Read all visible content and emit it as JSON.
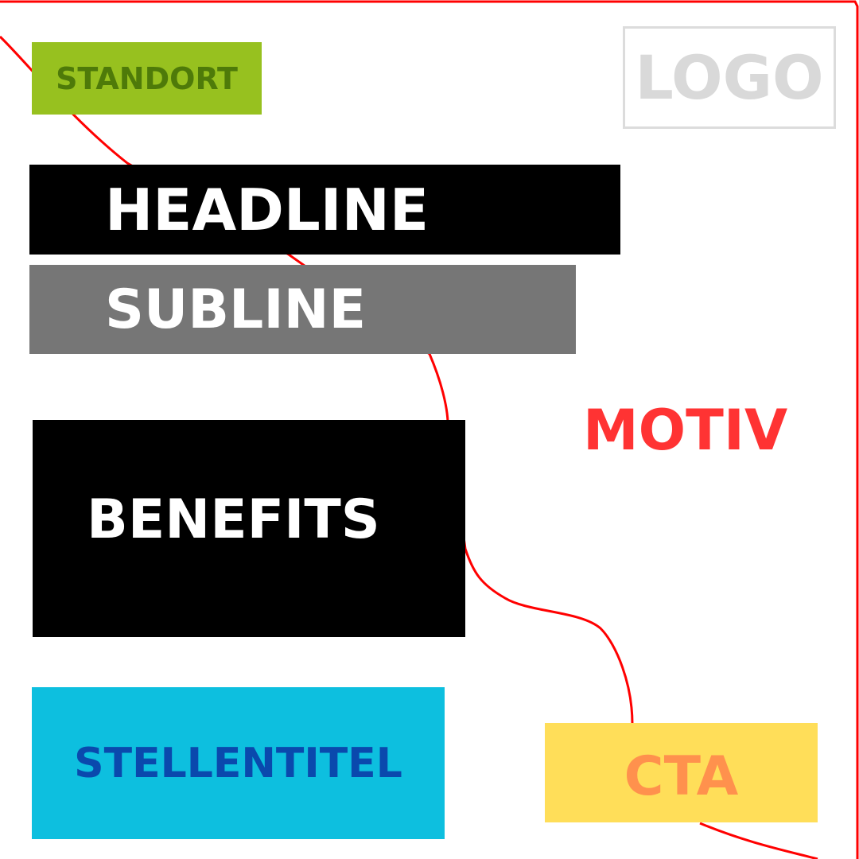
{
  "layout": {
    "standort": {
      "label": "STANDORT"
    },
    "logo": {
      "label": "LOGO"
    },
    "headline": {
      "label": "HEADLINE"
    },
    "subline": {
      "label": "SUBLINE"
    },
    "benefits": {
      "label": "BENEFITS"
    },
    "motiv": {
      "label": "MOTIV"
    },
    "stellentitel": {
      "label": "STELLENTITEL"
    },
    "cta": {
      "label": "CTA"
    }
  },
  "colors": {
    "motif_outline": "#ff0000",
    "standort_bg": "#97c11f",
    "standort_text": "#4e7a09",
    "logo_border": "#dcdcdc",
    "logo_text": "#d9d9d9",
    "headline_bg": "#000000",
    "subline_bg": "#767676",
    "benefits_bg": "#000000",
    "motiv_text": "#ff3333",
    "stellentitel_bg": "#0dbfdf",
    "stellentitel_text": "#0a49ad",
    "cta_bg": "#ffde59",
    "cta_text": "#ff914d"
  }
}
